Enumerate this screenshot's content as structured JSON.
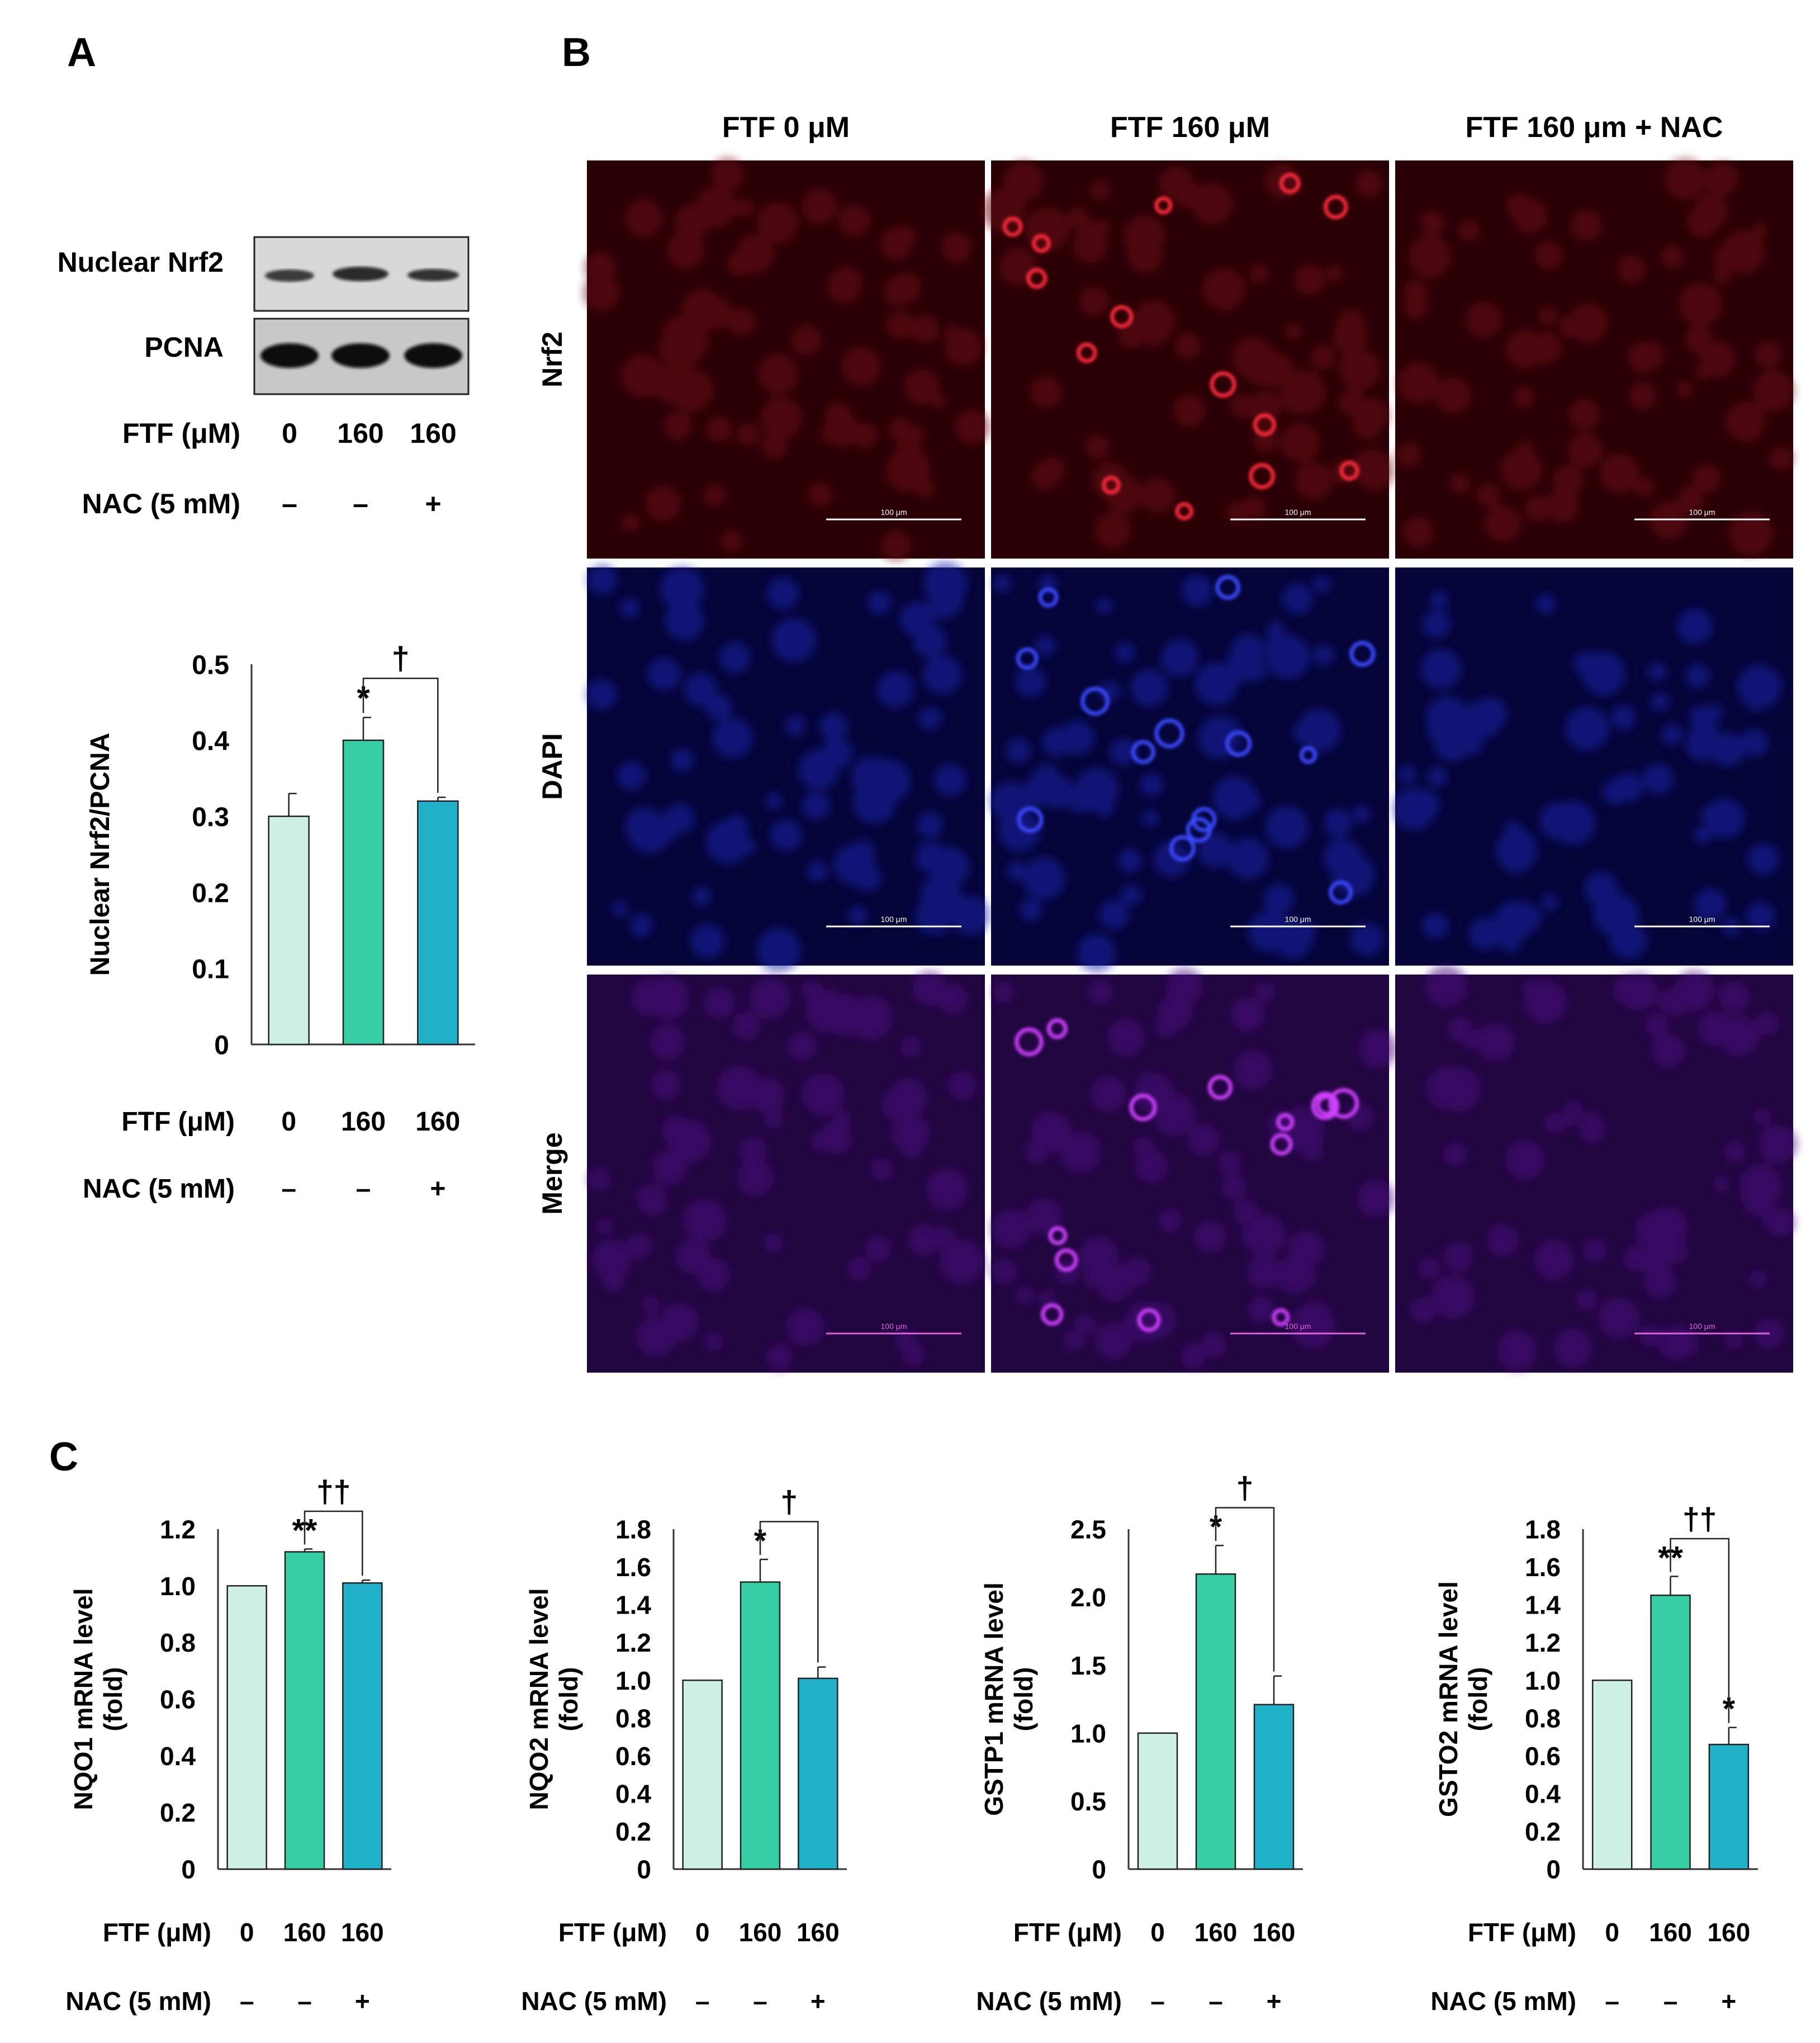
{
  "panel_labels": {
    "A": "A",
    "B": "B",
    "C": "C"
  },
  "colors": {
    "control": "#cdf0e3",
    "ftf": "#36cfa5",
    "nac": "#20b0c8",
    "axis": "#333333",
    "nrf2_stain": "#d01020",
    "dapi_stain": "#2020e0",
    "merge_stain": "#b030e0"
  },
  "blot": {
    "rows": [
      {
        "label": "Nuclear Nrf2"
      },
      {
        "label": "PCNA"
      }
    ],
    "ftf_label": "FTF (μM)",
    "ftf_values": [
      "0",
      "160",
      "160"
    ],
    "nac_label": "NAC (5 mM)",
    "nac_values": [
      "–",
      "–",
      "+"
    ]
  },
  "microscopy": {
    "columns": [
      "FTF 0 μM",
      "FTF 160 μM",
      "FTF 160 μm + NAC"
    ],
    "rows": [
      {
        "label": "Nrf2",
        "stain": "nrf2"
      },
      {
        "label": "DAPI",
        "stain": "dapi"
      },
      {
        "label": "Merge",
        "stain": "merge"
      }
    ],
    "scale_bar": "100 μm"
  },
  "chart_data": [
    {
      "type": "bar",
      "panel": "A",
      "categories": [
        "0 / –",
        "160 / –",
        "160 / +"
      ],
      "values": [
        0.3,
        0.4,
        0.32
      ],
      "errors": [
        0.03,
        0.03,
        0.005
      ],
      "ylabel": "Nuclear Nrf2/PCNA",
      "ylim": [
        0,
        0.5
      ],
      "yticks": [
        "0",
        "0.1",
        "0.2",
        "0.3",
        "0.4",
        "0.5"
      ],
      "marks": [
        "",
        "*",
        ""
      ],
      "bracket": "†",
      "ftf_label": "FTF (μM)",
      "ftf_values": [
        "0",
        "160",
        "160"
      ],
      "nac_label": "NAC (5 mM)",
      "nac_values": [
        "–",
        "–",
        "+"
      ]
    },
    {
      "type": "bar",
      "panel": "C",
      "categories": [
        "0 / –",
        "160 / –",
        "160 / +"
      ],
      "values": [
        1.0,
        1.12,
        1.01
      ],
      "errors": [
        0,
        0.01,
        0.01
      ],
      "ylabel": [
        "NQO1 mRNA level",
        "(fold)"
      ],
      "ylim": [
        0,
        1.2
      ],
      "yticks": [
        "0",
        "0.2",
        "0.4",
        "0.6",
        "0.8",
        "1.0",
        "1.2"
      ],
      "marks": [
        "",
        "**",
        ""
      ],
      "bracket": "††",
      "ftf_label": "FTF (μM)",
      "ftf_values": [
        "0",
        "160",
        "160"
      ],
      "nac_label": "NAC (5 mM)",
      "nac_values": [
        "–",
        "–",
        "+"
      ]
    },
    {
      "type": "bar",
      "panel": "C",
      "categories": [
        "0 / –",
        "160 / –",
        "160 / +"
      ],
      "values": [
        1.0,
        1.52,
        1.01
      ],
      "errors": [
        0,
        0.12,
        0.06
      ],
      "ylabel": [
        "NQO2 mRNA level",
        "(fold)"
      ],
      "ylim": [
        0,
        1.8
      ],
      "yticks": [
        "0",
        "0.2",
        "0.4",
        "0.6",
        "0.8",
        "1.0",
        "1.2",
        "1.4",
        "1.6",
        "1.8"
      ],
      "marks": [
        "",
        "*",
        ""
      ],
      "bracket": "†",
      "ftf_label": "FTF (μM)",
      "ftf_values": [
        "0",
        "160",
        "160"
      ],
      "nac_label": "NAC (5 mM)",
      "nac_values": [
        "–",
        "–",
        "+"
      ]
    },
    {
      "type": "bar",
      "panel": "C",
      "categories": [
        "0 / –",
        "160 / –",
        "160 / +"
      ],
      "values": [
        1.0,
        2.17,
        1.21
      ],
      "errors": [
        0,
        0.21,
        0.21
      ],
      "ylabel": [
        "GSTP1 mRNA level",
        "(fold)"
      ],
      "ylim": [
        0,
        2.5
      ],
      "yticks": [
        "0",
        "0.5",
        "1.0",
        "1.5",
        "2.0",
        "2.5"
      ],
      "marks": [
        "",
        "*",
        ""
      ],
      "bracket": "†",
      "ftf_label": "FTF (μM)",
      "ftf_values": [
        "0",
        "160",
        "160"
      ],
      "nac_label": "NAC (5 mM)",
      "nac_values": [
        "–",
        "–",
        "+"
      ]
    },
    {
      "type": "bar",
      "panel": "C",
      "categories": [
        "0 / –",
        "160 / –",
        "160 / +"
      ],
      "values": [
        1.0,
        1.45,
        0.66
      ],
      "errors": [
        0,
        0.1,
        0.09
      ],
      "ylabel": [
        "GSTO2 mRNA level",
        "(fold)"
      ],
      "ylim": [
        0,
        1.8
      ],
      "yticks": [
        "0",
        "0.2",
        "0.4",
        "0.6",
        "0.8",
        "1.0",
        "1.2",
        "1.4",
        "1.6",
        "1.8"
      ],
      "marks": [
        "",
        "**",
        "*"
      ],
      "bracket": "††",
      "ftf_label": "FTF (μM)",
      "ftf_values": [
        "0",
        "160",
        "160"
      ],
      "nac_label": "NAC (5 mM)",
      "nac_values": [
        "–",
        "–",
        "+"
      ]
    }
  ]
}
